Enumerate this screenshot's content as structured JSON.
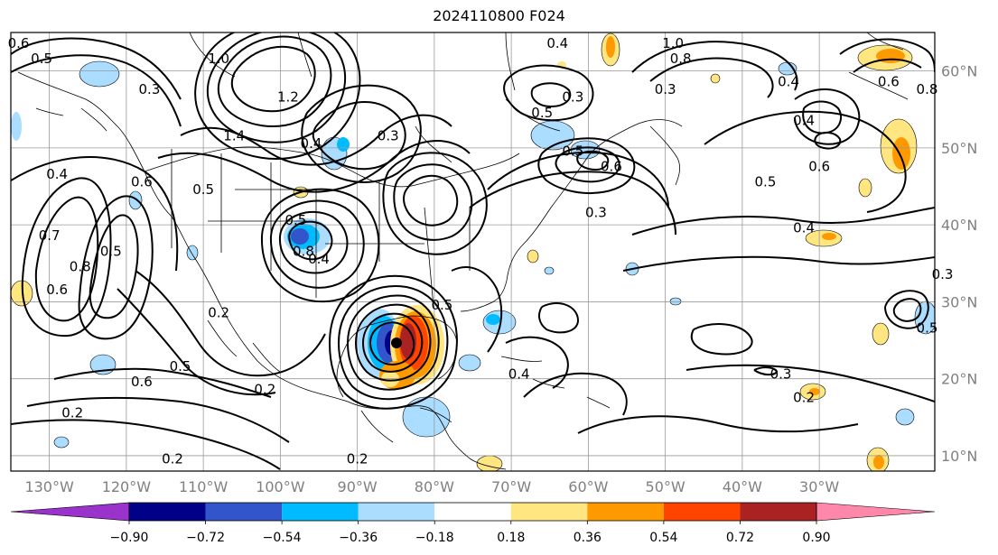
{
  "title": "2024110800 F024",
  "axes": {
    "lon_ticks": [
      "130°W",
      "120°W",
      "110°W",
      "100°W",
      "90°W",
      "80°W",
      "70°W",
      "60°W",
      "50°W",
      "40°W",
      "30°W"
    ],
    "lat_ticks": [
      "60°N",
      "50°N",
      "40°N",
      "30°N",
      "20°N",
      "10°N"
    ],
    "tick_label_color": "#808080"
  },
  "contour_labels": [
    {
      "text": "0.6",
      "lon": -134,
      "lat": 63
    },
    {
      "text": "0.5",
      "lon": -131,
      "lat": 61
    },
    {
      "text": "0.3",
      "lon": -117,
      "lat": 57
    },
    {
      "text": "1.0",
      "lon": -108,
      "lat": 61
    },
    {
      "text": "1.2",
      "lon": -99,
      "lat": 56
    },
    {
      "text": "1.4",
      "lon": -106,
      "lat": 51
    },
    {
      "text": "0.4",
      "lon": -96,
      "lat": 50
    },
    {
      "text": "0.5",
      "lon": -110,
      "lat": 44
    },
    {
      "text": "0.6",
      "lon": -118,
      "lat": 45
    },
    {
      "text": "0.4",
      "lon": -129,
      "lat": 46
    },
    {
      "text": "0.7",
      "lon": -130,
      "lat": 38
    },
    {
      "text": "0.8",
      "lon": -126,
      "lat": 34
    },
    {
      "text": "0.5",
      "lon": -122,
      "lat": 36
    },
    {
      "text": "0.6",
      "lon": -129,
      "lat": 31
    },
    {
      "text": "0.5",
      "lon": -98,
      "lat": 40
    },
    {
      "text": "0.8",
      "lon": -97,
      "lat": 36
    },
    {
      "text": "0.4",
      "lon": -95,
      "lat": 35
    },
    {
      "text": "0.3",
      "lon": -86,
      "lat": 51
    },
    {
      "text": "0.2",
      "lon": -108,
      "lat": 28
    },
    {
      "text": "0.5",
      "lon": -113,
      "lat": 21
    },
    {
      "text": "0.6",
      "lon": -118,
      "lat": 19
    },
    {
      "text": "0.2",
      "lon": -102,
      "lat": 18
    },
    {
      "text": "0.2",
      "lon": -127,
      "lat": 15
    },
    {
      "text": "0.2",
      "lon": -114,
      "lat": 9
    },
    {
      "text": "0.2",
      "lon": -90,
      "lat": 9
    },
    {
      "text": "0.4",
      "lon": -69,
      "lat": 20
    },
    {
      "text": "0.5",
      "lon": -79,
      "lat": 29
    },
    {
      "text": "0.3",
      "lon": -62,
      "lat": 56
    },
    {
      "text": "0.5",
      "lon": -66,
      "lat": 54
    },
    {
      "text": "0.5",
      "lon": -62,
      "lat": 49
    },
    {
      "text": "0.6",
      "lon": -57,
      "lat": 47
    },
    {
      "text": "0.3",
      "lon": -59,
      "lat": 41
    },
    {
      "text": "0.4",
      "lon": -64,
      "lat": 63
    },
    {
      "text": "1.0",
      "lon": -49,
      "lat": 63
    },
    {
      "text": "0.8",
      "lon": -48,
      "lat": 61
    },
    {
      "text": "0.3",
      "lon": -50,
      "lat": 57
    },
    {
      "text": "0.4",
      "lon": -34,
      "lat": 58
    },
    {
      "text": "0.4",
      "lon": -32,
      "lat": 53
    },
    {
      "text": "0.6",
      "lon": -30,
      "lat": 47
    },
    {
      "text": "0.5",
      "lon": -37,
      "lat": 45
    },
    {
      "text": "0.8",
      "lon": -16,
      "lat": 57
    },
    {
      "text": "0.6",
      "lon": -21,
      "lat": 58
    },
    {
      "text": "0.4",
      "lon": -32,
      "lat": 39
    },
    {
      "text": "0.5",
      "lon": -16,
      "lat": 26
    },
    {
      "text": "0.3",
      "lon": -35,
      "lat": 20
    },
    {
      "text": "0.2",
      "lon": -32,
      "lat": 17
    },
    {
      "text": "0.3",
      "lon": -14,
      "lat": 33
    }
  ],
  "colorbar": {
    "ticks": [
      "−0.90",
      "−0.72",
      "−0.54",
      "−0.36",
      "−0.18",
      "0.18",
      "0.36",
      "0.54",
      "0.72",
      "0.90"
    ],
    "colors": [
      "#9933cc",
      "#000088",
      "#3355cc",
      "#00bbff",
      "#aaddff",
      "#ffffff",
      "#ffe680",
      "#ff9900",
      "#ff4400",
      "#aa2222",
      "#ff88aa"
    ]
  }
}
